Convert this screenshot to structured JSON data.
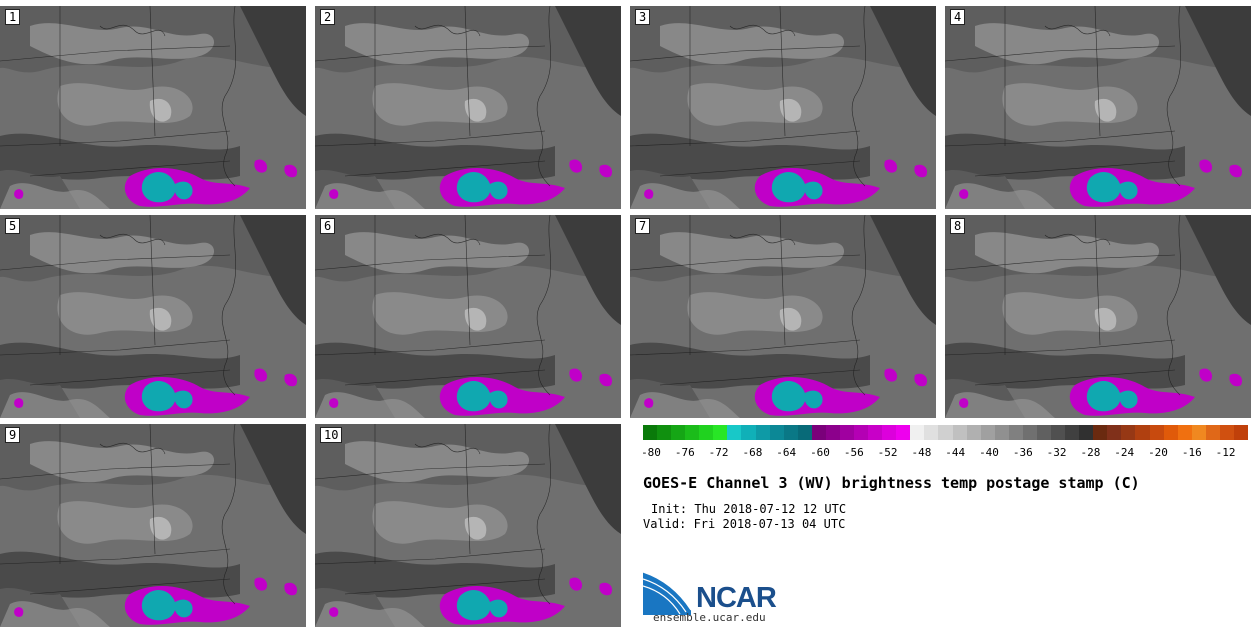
{
  "panels": [
    {
      "label": "1"
    },
    {
      "label": "2"
    },
    {
      "label": "3"
    },
    {
      "label": "4"
    },
    {
      "label": "5"
    },
    {
      "label": "6"
    },
    {
      "label": "7"
    },
    {
      "label": "8"
    },
    {
      "label": "9"
    },
    {
      "label": "10"
    }
  ],
  "colorbar": {
    "ticks": [
      "-80",
      "-76",
      "-72",
      "-68",
      "-64",
      "-60",
      "-56",
      "-52",
      "-48",
      "-44",
      "-40",
      "-36",
      "-32",
      "-28",
      "-24",
      "-20",
      "-16",
      "-12"
    ],
    "colors": [
      "#0a7a0a",
      "#10900f",
      "#15a615",
      "#1bbc1a",
      "#20d21f",
      "#28e626",
      "#18c8c8",
      "#10b0b8",
      "#0e9aa6",
      "#0c8896",
      "#0a7886",
      "#086a78",
      "#7a007a",
      "#8c008c",
      "#a000a0",
      "#b400b4",
      "#c800c8",
      "#dc00dc",
      "#ee00ee",
      "#f0f0f0",
      "#e0e0e0",
      "#d0d0d0",
      "#c0c0c0",
      "#b0b0b0",
      "#a0a0a0",
      "#909090",
      "#808080",
      "#707070",
      "#606060",
      "#505050",
      "#404040",
      "#303030",
      "#6a2a10",
      "#80301a",
      "#963815",
      "#b04010",
      "#c84a0e",
      "#e05a0a",
      "#f07010",
      "#f08820",
      "#e06818",
      "#d05010",
      "#c0400a"
    ]
  },
  "title": "GOES-E Channel 3 (WV) brightness temp postage stamp (C)",
  "init": "Init: Thu 2018-07-12 12 UTC",
  "valid": "Valid: Fri 2018-07-13 04 UTC",
  "logo": {
    "text": "NCAR",
    "url": "ensemble.ucar.edu"
  }
}
